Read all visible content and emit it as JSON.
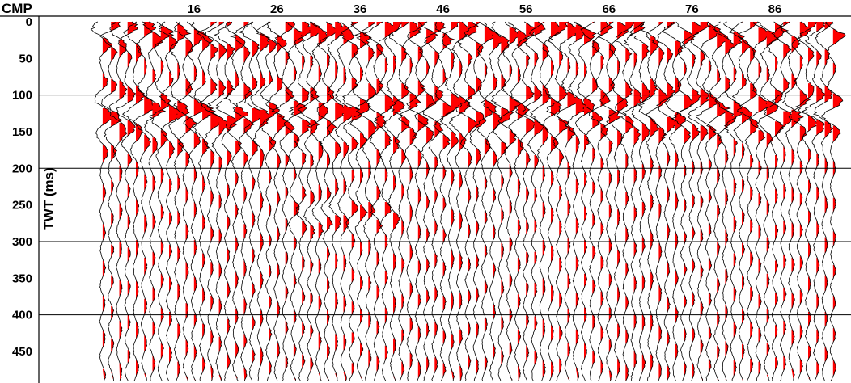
{
  "chart_data": {
    "type": "seismic-wiggle",
    "title": "",
    "xlabel": "CMP",
    "ylabel": "TWT (ms)",
    "x_ticks": [
      16,
      26,
      36,
      46,
      56,
      66,
      76,
      86
    ],
    "y_ticks": [
      0,
      50,
      100,
      150,
      200,
      250,
      300,
      350,
      400,
      450
    ],
    "ylim": [
      0,
      490
    ],
    "y_inverted": true,
    "grid_lines_ms": [
      100,
      200,
      300,
      400
    ],
    "trace_cmp_range": [
      4,
      93
    ],
    "fill_color": "#ff0000",
    "line_color": "#000000",
    "reflectors": [
      {
        "name": "",
        "twt_ms": [
          0,
          30
        ],
        "cmp_range": [
          5,
          93
        ],
        "amplitude": "high"
      },
      {
        "name": "",
        "twt_ms": [
          100,
          145
        ],
        "cmp_range": [
          5,
          93
        ],
        "amplitude": "high"
      },
      {
        "name": "",
        "twt_ms": [
          150,
          180
        ],
        "cmp_range": [
          5,
          60
        ],
        "amplitude": "medium"
      },
      {
        "name": "",
        "twt_ms": [
          240,
          285
        ],
        "cmp_range": [
          28,
          40
        ],
        "amplitude": "medium"
      }
    ]
  }
}
